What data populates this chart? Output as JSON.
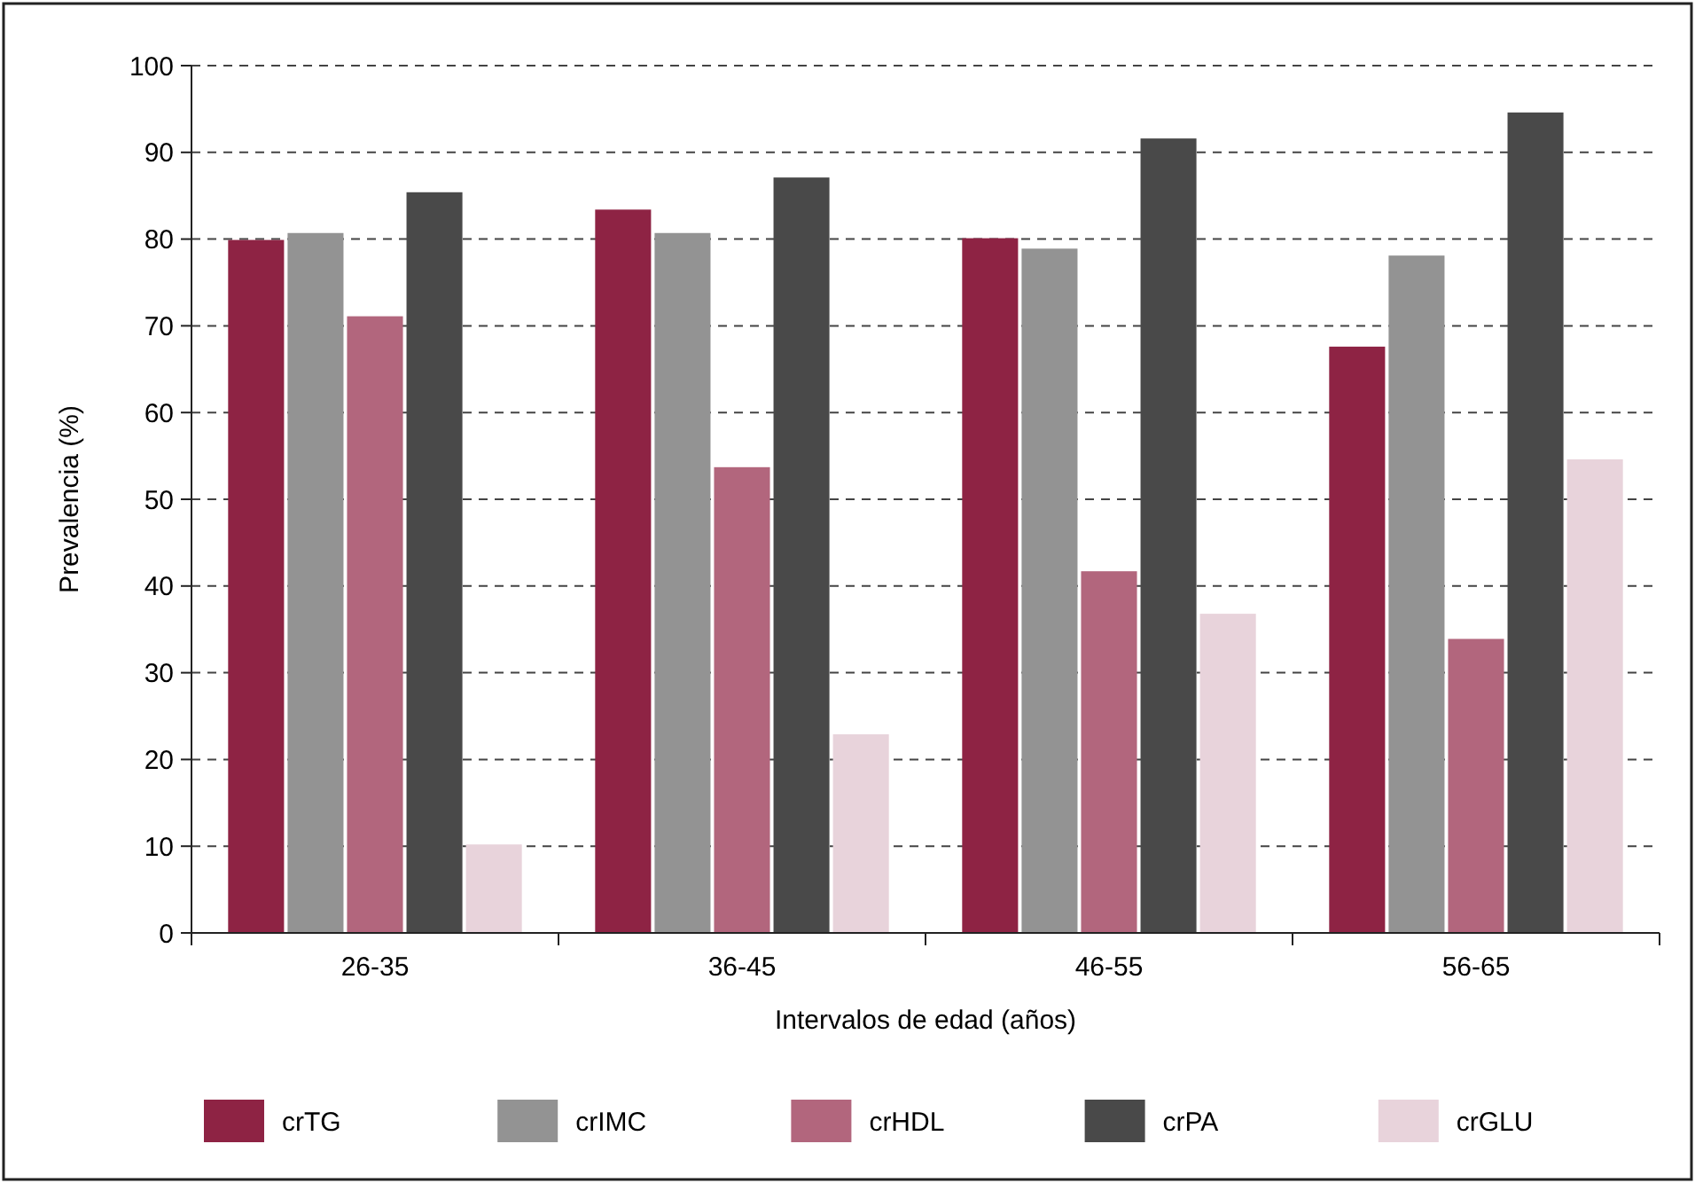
{
  "chart_data": {
    "type": "bar",
    "xlabel": "Intervalos de edad (años)",
    "ylabel": "Prevalencia (%)",
    "categories": [
      "26-35",
      "36-45",
      "46-55",
      "56-65"
    ],
    "series": [
      {
        "name": "crTG",
        "color": "#8e2344",
        "values": [
          79.9,
          83.4,
          80.1,
          67.6
        ]
      },
      {
        "name": "crIMC",
        "color": "#939393",
        "values": [
          80.7,
          80.7,
          78.9,
          78.1
        ]
      },
      {
        "name": "crHDL",
        "color": "#b2667d",
        "values": [
          71.1,
          53.7,
          41.7,
          33.9
        ]
      },
      {
        "name": "crPA",
        "color": "#494949",
        "values": [
          85.4,
          87.1,
          91.6,
          94.6
        ]
      },
      {
        "name": "crGLU",
        "color": "#e8d3db",
        "values": [
          10.2,
          22.9,
          36.8,
          54.6
        ]
      }
    ],
    "ylim": [
      0,
      100
    ],
    "yticks": [
      0,
      10,
      20,
      30,
      40,
      50,
      60,
      70,
      80,
      90,
      100
    ],
    "grid": "y",
    "legend": "bottom"
  }
}
